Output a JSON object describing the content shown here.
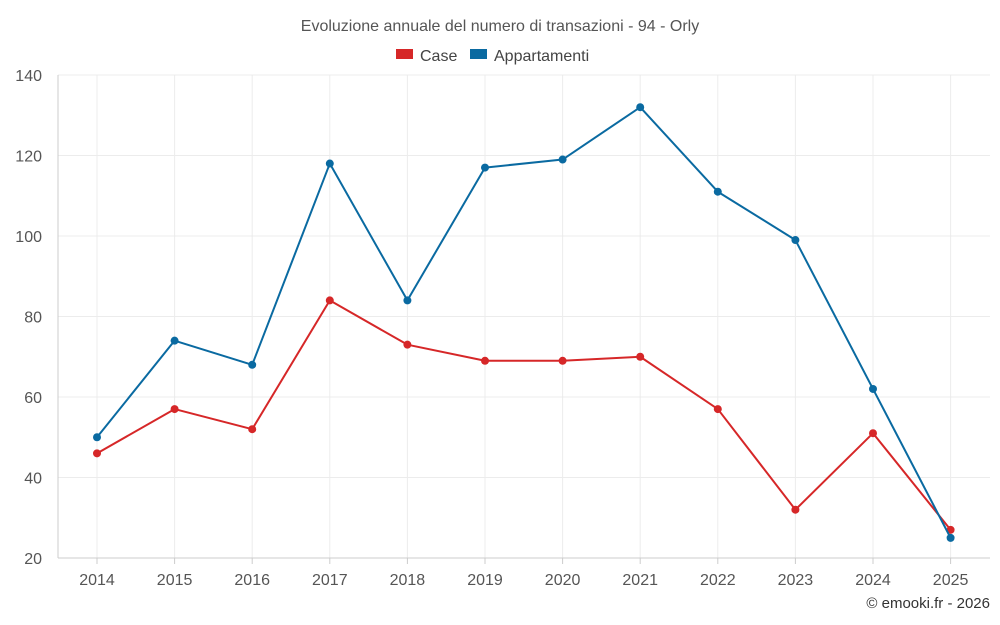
{
  "chart_data": {
    "type": "line",
    "title": "Evoluzione annuale del numero di transazioni - 94 - Orly",
    "xlabel": "",
    "ylabel": "",
    "x": [
      "2014",
      "2015",
      "2016",
      "2017",
      "2018",
      "2019",
      "2020",
      "2021",
      "2022",
      "2023",
      "2024",
      "2025"
    ],
    "ylim": [
      20,
      140
    ],
    "yticks": [
      20,
      40,
      60,
      80,
      100,
      120,
      140
    ],
    "grid": true,
    "legend_position": "top-center",
    "series": [
      {
        "name": "Case",
        "color": "#d62728",
        "values": [
          46,
          57,
          52,
          84,
          73,
          69,
          69,
          70,
          57,
          32,
          51,
          27
        ]
      },
      {
        "name": "Appartamenti",
        "color": "#0a6aa1",
        "values": [
          50,
          74,
          68,
          118,
          84,
          117,
          119,
          132,
          111,
          99,
          62,
          25
        ]
      }
    ],
    "credit": "© emooki.fr - 2026"
  }
}
